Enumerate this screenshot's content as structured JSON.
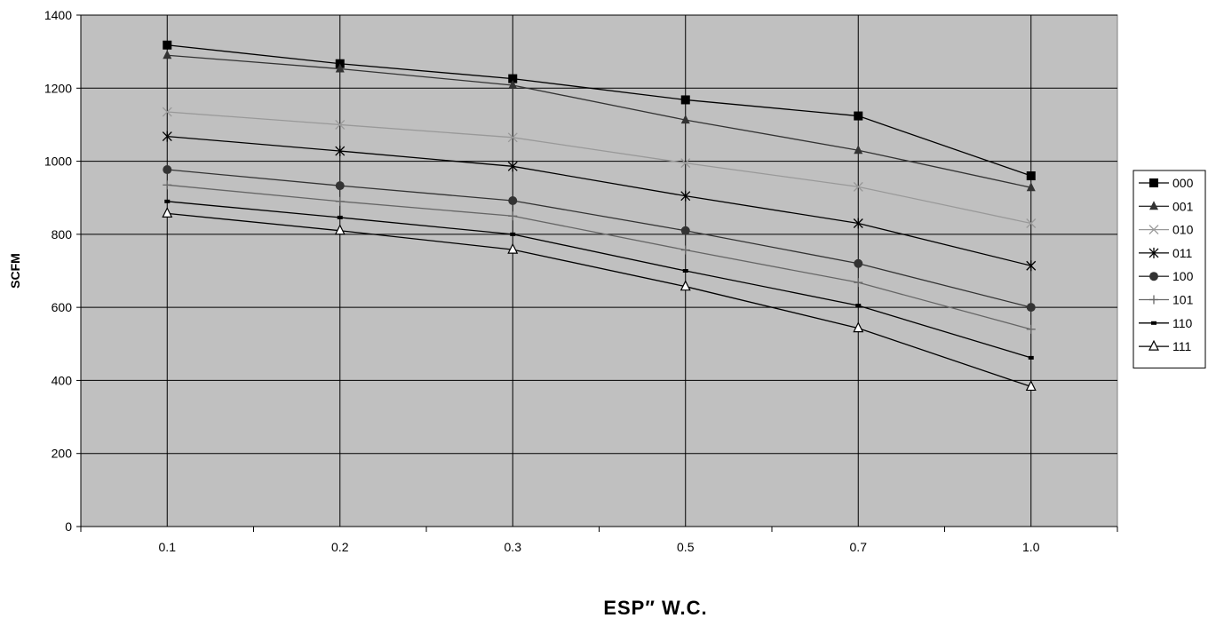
{
  "chart_data": {
    "type": "line",
    "title": "",
    "xlabel": "ESP″ W.C.",
    "ylabel": "SCFM",
    "categories": [
      "0.1",
      "0.2",
      "0.3",
      "0.5",
      "0.7",
      "1.0"
    ],
    "ylim": [
      0,
      1400
    ],
    "y_ticks": [
      "0",
      "200",
      "400",
      "600",
      "800",
      "1000",
      "1200",
      "1400"
    ],
    "grid": true,
    "legend_position": "right",
    "plot_background": "#c0c0c0",
    "series": [
      {
        "name": "000",
        "marker": "square",
        "color": "#000000",
        "values": [
          1318,
          1267,
          1226,
          1168,
          1124,
          960
        ]
      },
      {
        "name": "001",
        "marker": "triangle",
        "color": "#333333",
        "values": [
          1290,
          1253,
          1208,
          1113,
          1030,
          928
        ]
      },
      {
        "name": "010",
        "marker": "x",
        "color": "#999999",
        "values": [
          1135,
          1100,
          1065,
          995,
          930,
          830
        ]
      },
      {
        "name": "011",
        "marker": "star",
        "color": "#000000",
        "values": [
          1068,
          1028,
          986,
          905,
          830,
          714
        ]
      },
      {
        "name": "100",
        "marker": "circle",
        "color": "#333333",
        "values": [
          977,
          933,
          892,
          810,
          720,
          600
        ]
      },
      {
        "name": "101",
        "marker": "plus",
        "color": "#666666",
        "values": [
          935,
          890,
          850,
          757,
          668,
          540
        ]
      },
      {
        "name": "110",
        "marker": "dash",
        "color": "#000000",
        "values": [
          890,
          846,
          800,
          700,
          605,
          462
        ]
      },
      {
        "name": "111",
        "marker": "triangle-open",
        "color": "#000000",
        "values": [
          857,
          810,
          758,
          657,
          543,
          383
        ]
      }
    ]
  }
}
